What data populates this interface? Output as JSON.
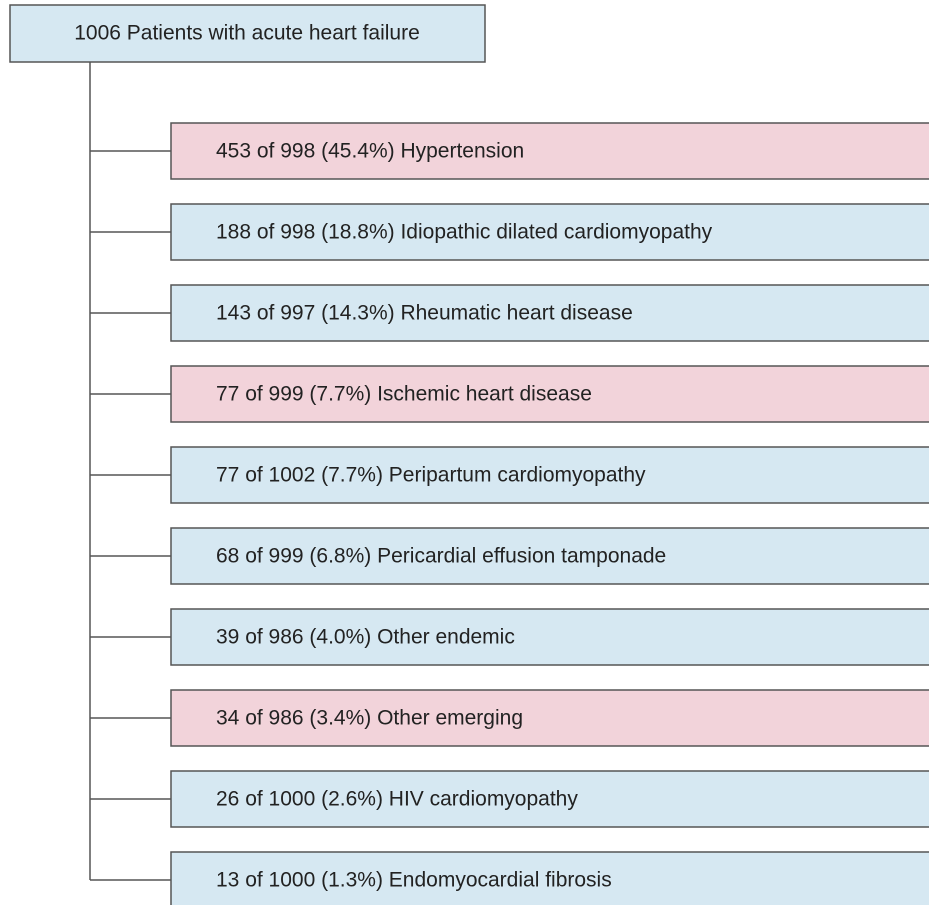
{
  "root": {
    "label": "1006 Patients with acute heart failure",
    "color": "#d6e8f2"
  },
  "nodes": [
    {
      "label": "453 of 998 (45.4%) Hypertension",
      "color": "#f2d3da"
    },
    {
      "label": "188 of 998 (18.8%) Idiopathic dilated cardiomyopathy",
      "color": "#d6e8f2"
    },
    {
      "label": "143 of 997 (14.3%) Rheumatic heart disease",
      "color": "#d6e8f2"
    },
    {
      "label": "77 of 999 (7.7%) Ischemic heart disease",
      "color": "#f2d3da"
    },
    {
      "label": "77 of 1002 (7.7%) Peripartum cardiomyopathy",
      "color": "#d6e8f2"
    },
    {
      "label": "68 of 999 (6.8%) Pericardial effusion tamponade",
      "color": "#d6e8f2"
    },
    {
      "label": "39 of 986 (4.0%) Other endemic",
      "color": "#d6e8f2"
    },
    {
      "label": "34 of 986 (3.4%) Other emerging",
      "color": "#f2d3da"
    },
    {
      "label": "26 of 1000 (2.6%) HIV cardiomyopathy",
      "color": "#d6e8f2"
    },
    {
      "label": "13 of 1000 (1.3%) Endomyocardial fibrosis",
      "color": "#d6e8f2"
    }
  ]
}
